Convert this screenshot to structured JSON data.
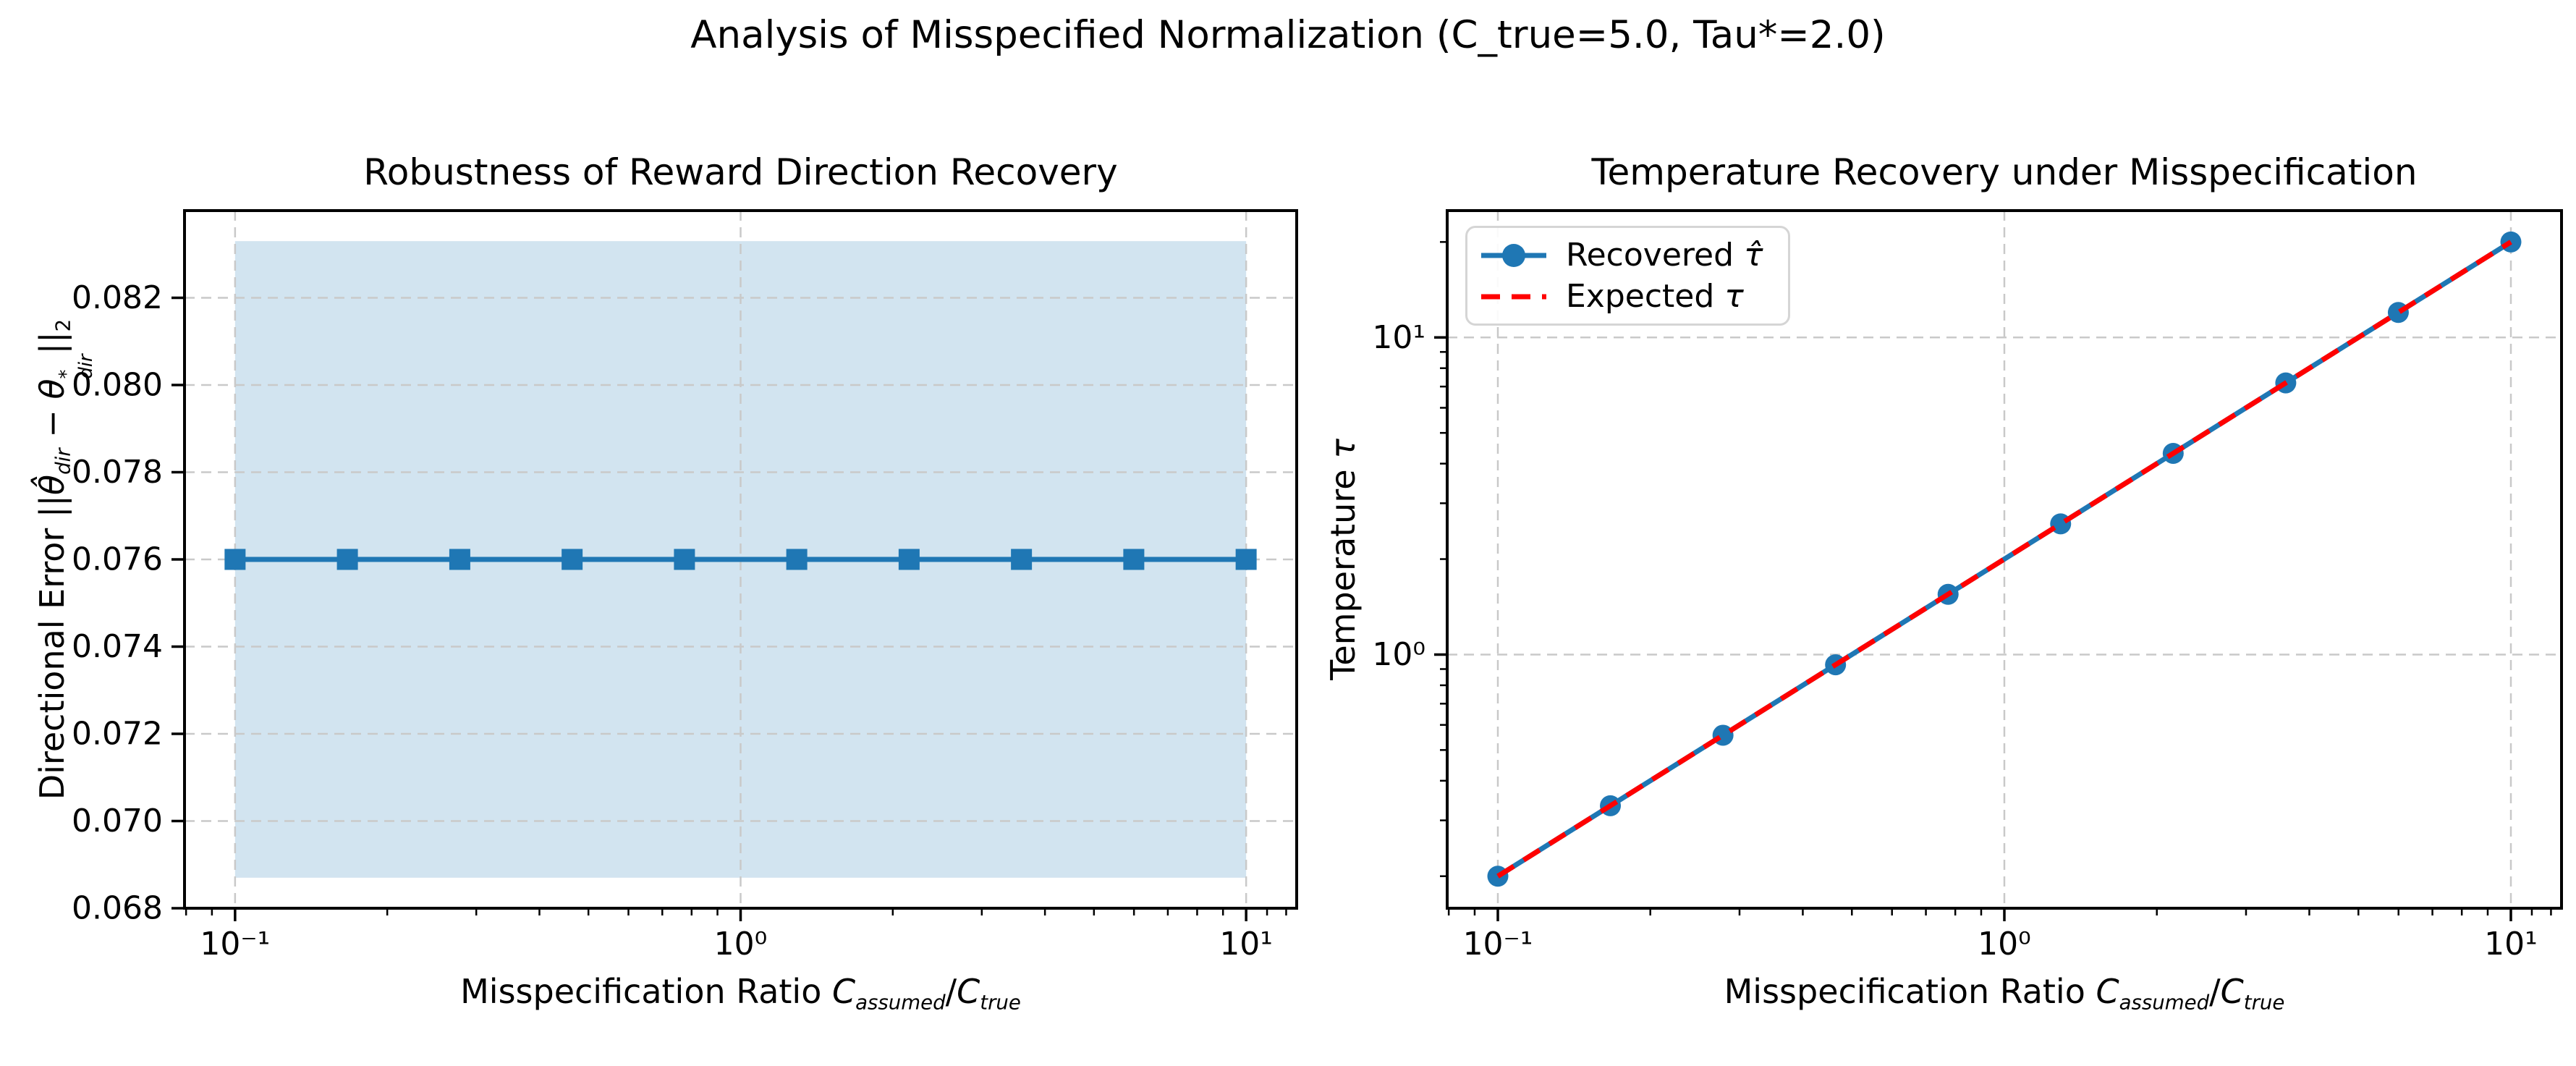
{
  "suptitle": "Analysis of Misspecified Normalization (C_true=5.0, Tau*=2.0)",
  "colors": {
    "series_blue": "#1f77b4",
    "expected_red": "#ff0000",
    "band_fill": "#1f77b4",
    "grid": "#c9c9c9",
    "spine": "#000000",
    "legend_border": "#d5d5d5"
  },
  "chart_data": [
    {
      "type": "line",
      "title": "Robustness of Reward Direction Recovery",
      "xlabel_runs": [
        {
          "t": "Misspecification Ratio "
        },
        {
          "t": "C",
          "i": 1
        },
        {
          "t": "assumed",
          "v": "sub",
          "i": 1
        },
        {
          "t": "/"
        },
        {
          "t": "C",
          "i": 1
        },
        {
          "t": "true",
          "v": "sub",
          "i": 1
        }
      ],
      "ylabel_runs": [
        {
          "t": "Directional Error ||"
        },
        {
          "t": "θ̂",
          "i": 1
        },
        {
          "t": "dir",
          "v": "sub",
          "i": 1
        },
        {
          "t": " − "
        },
        {
          "t": "θ",
          "i": 1
        },
        {
          "sup": "*",
          "sub": "dir"
        },
        {
          "t": "||"
        },
        {
          "t": "2",
          "v": "sub"
        }
      ],
      "x_scale": "log",
      "y_scale": "linear",
      "xlim": [
        0.079433,
        12.589
      ],
      "ylim": [
        0.068,
        0.084
      ],
      "x_major_ticks": [
        {
          "v": 0.1,
          "label": "10⁻¹"
        },
        {
          "v": 1,
          "label": "10⁰"
        },
        {
          "v": 10,
          "label": "10¹"
        }
      ],
      "x_minor_ticks": [
        0.08,
        0.09,
        0.2,
        0.3,
        0.4,
        0.5,
        0.6,
        0.7,
        0.8,
        0.9,
        2,
        3,
        4,
        5,
        6,
        7,
        8,
        9,
        11,
        12
      ],
      "y_major_ticks": [
        {
          "v": 0.068,
          "label": "0.068"
        },
        {
          "v": 0.07,
          "label": "0.070"
        },
        {
          "v": 0.072,
          "label": "0.072"
        },
        {
          "v": 0.074,
          "label": "0.074"
        },
        {
          "v": 0.076,
          "label": "0.076"
        },
        {
          "v": 0.078,
          "label": "0.078"
        },
        {
          "v": 0.08,
          "label": "0.080"
        },
        {
          "v": 0.082,
          "label": "0.082"
        }
      ],
      "y_minor_ticks": [],
      "band": {
        "x": [
          0.1,
          10
        ],
        "y_low": 0.0687,
        "y_high": 0.0833,
        "color": "#1f77b4",
        "opacity": 0.2
      },
      "series": [
        {
          "x": [
            0.1,
            0.1668,
            0.2783,
            0.4642,
            0.7743,
            1.2915,
            2.1544,
            3.5938,
            5.9948,
            10.0
          ],
          "y": [
            0.076,
            0.076,
            0.076,
            0.076,
            0.076,
            0.076,
            0.076,
            0.076,
            0.076,
            0.076
          ],
          "color": "#1f77b4",
          "marker": "square",
          "marker_size": 29,
          "line_width": 7,
          "dash": null
        }
      ]
    },
    {
      "type": "line",
      "title": "Temperature Recovery under Misspecification",
      "xlabel_runs": [
        {
          "t": "Misspecification Ratio "
        },
        {
          "t": "C",
          "i": 1
        },
        {
          "t": "assumed",
          "v": "sub",
          "i": 1
        },
        {
          "t": "/"
        },
        {
          "t": "C",
          "i": 1
        },
        {
          "t": "true",
          "v": "sub",
          "i": 1
        }
      ],
      "ylabel_runs": [
        {
          "t": "Temperature "
        },
        {
          "t": "τ",
          "i": 1
        }
      ],
      "x_scale": "log",
      "y_scale": "log",
      "xlim": [
        0.079433,
        12.589
      ],
      "ylim": [
        0.158489,
        25.1189
      ],
      "x_major_ticks": [
        {
          "v": 0.1,
          "label": "10⁻¹"
        },
        {
          "v": 1,
          "label": "10⁰"
        },
        {
          "v": 10,
          "label": "10¹"
        }
      ],
      "x_minor_ticks": [
        0.08,
        0.09,
        0.2,
        0.3,
        0.4,
        0.5,
        0.6,
        0.7,
        0.8,
        0.9,
        2,
        3,
        4,
        5,
        6,
        7,
        8,
        9,
        11,
        12
      ],
      "y_major_ticks": [
        {
          "v": 1,
          "label": "10⁰"
        },
        {
          "v": 10,
          "label": "10¹"
        }
      ],
      "y_minor_ticks": [
        0.2,
        0.3,
        0.4,
        0.5,
        0.6,
        0.7,
        0.8,
        0.9,
        2,
        3,
        4,
        5,
        6,
        7,
        8,
        9,
        20
      ],
      "band": null,
      "legend_position": "top-left",
      "series": [
        {
          "name_runs": [
            {
              "t": "Recovered "
            },
            {
              "t": "τ̂",
              "i": 1
            }
          ],
          "x": [
            0.1,
            0.1668,
            0.2783,
            0.4642,
            0.7743,
            1.2915,
            2.1544,
            3.5938,
            5.9948,
            10.0
          ],
          "y": [
            0.2,
            0.3336,
            0.5566,
            0.9284,
            1.5487,
            2.5829,
            4.3089,
            7.1877,
            11.9896,
            20.0
          ],
          "color": "#1f77b4",
          "marker": "circle",
          "marker_size": 29,
          "line_width": 7,
          "dash": null
        },
        {
          "name_runs": [
            {
              "t": "Expected "
            },
            {
              "t": "τ",
              "i": 1
            }
          ],
          "x": [
            0.1,
            0.1668,
            0.2783,
            0.4642,
            0.7743,
            1.2915,
            2.1544,
            3.5938,
            5.9948,
            10.0
          ],
          "y": [
            0.2,
            0.3336,
            0.5566,
            0.9284,
            1.5487,
            2.5829,
            4.3089,
            7.1877,
            11.9896,
            20.0
          ],
          "color": "#ff0000",
          "marker": null,
          "marker_size": 0,
          "line_width": 7,
          "dash": [
            26,
            16
          ]
        }
      ]
    }
  ]
}
